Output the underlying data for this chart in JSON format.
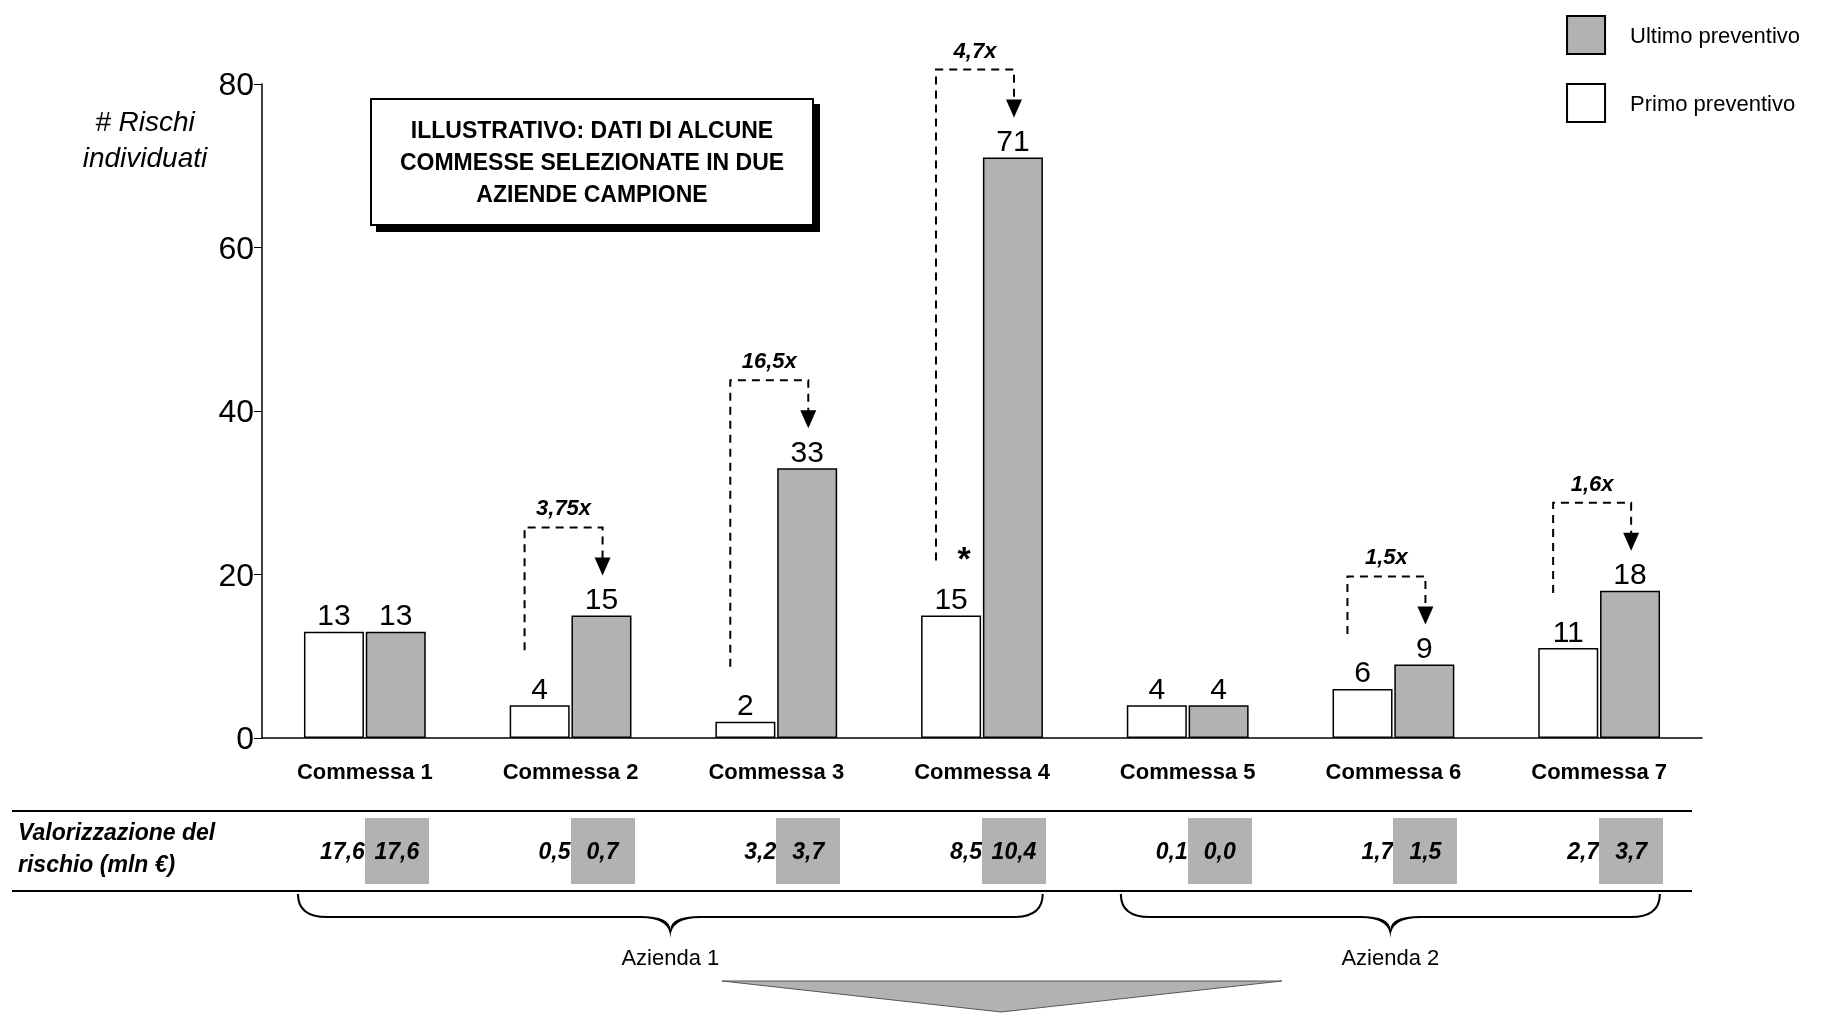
{
  "chart_data": [
    {
      "type": "bar",
      "ylabel": "# Rischi individuati",
      "categories": [
        "Commessa 1",
        "Commessa 2",
        "Commessa 3",
        "Commessa 4",
        "Commessa 5",
        "Commessa 6",
        "Commessa 7"
      ],
      "series": [
        {
          "name": "Primo preventivo",
          "color": "#ffffff",
          "values": [
            13,
            4,
            2,
            15,
            4,
            6,
            11
          ]
        },
        {
          "name": "Ultimo preventivo",
          "color": "#b2b2b2",
          "values": [
            13,
            15,
            33,
            71,
            4,
            9,
            18
          ]
        }
      ],
      "ylim": [
        0,
        80
      ],
      "yticks": [
        0,
        20,
        40,
        60,
        80
      ],
      "grid": false,
      "legend": "top right",
      "data_labels": true,
      "annotations": [
        "ILLUSTRATIVO: DATI DI ALCUNE COMMESSE SELEZIONATE IN DUE AZIENDE CAMPIONE",
        "3,75x",
        "16,5x",
        "4,7x",
        "1,5x",
        "1,6x",
        {
          "text": "*",
          "x": "Commessa 4",
          "y": 22
        }
      ]
    },
    {
      "type": "other",
      "title": "Valorizzazione del rischio (mln €)",
      "colors": [
        "#ffffff",
        "#b2b2b2"
      ],
      "annotations": [
        "17,6",
        "17,6",
        "0,5",
        "0,7",
        "3,2",
        "3,7",
        "8,5",
        "10,4",
        "0,1",
        "0,0",
        "1,7",
        "1,5",
        "2,7",
        "3,7",
        {
          "text": "Azienda 1",
          "x": "Commessa 1"
        },
        {
          "text": "Azienda 2",
          "x": "Commessa 5"
        }
      ]
    }
  ]
}
